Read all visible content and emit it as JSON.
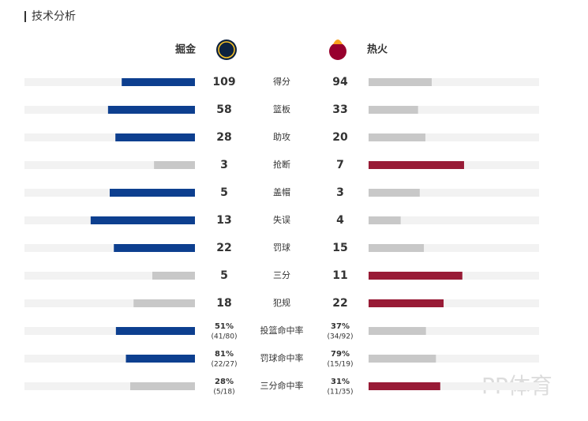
{
  "chart_data": {
    "type": "mirror-bar",
    "title": "技术分析",
    "categories": [
      "得分",
      "篮板",
      "助攻",
      "抢断",
      "盖帽",
      "失误",
      "罚球",
      "三分",
      "犯规",
      "投篮命中率",
      "罚球命中率",
      "三分命中率"
    ],
    "series": [
      {
        "name": "掘金",
        "color": "#0d3f8f",
        "values": [
          109,
          58,
          28,
          3,
          5,
          13,
          22,
          5,
          18,
          51,
          81,
          28
        ],
        "value_labels": [
          null,
          null,
          null,
          null,
          null,
          null,
          null,
          null,
          null,
          "51%",
          "81%",
          "28%"
        ],
        "details": [
          null,
          null,
          null,
          null,
          null,
          null,
          null,
          null,
          null,
          "(41/80)",
          "(22/27)",
          "(5/18)"
        ]
      },
      {
        "name": "热火",
        "color": "#981b36",
        "values": [
          94,
          33,
          20,
          7,
          3,
          4,
          15,
          11,
          22,
          37,
          79,
          31
        ],
        "value_labels": [
          null,
          null,
          null,
          null,
          null,
          null,
          null,
          null,
          null,
          "37%",
          "79%",
          "31%"
        ],
        "details": [
          null,
          null,
          null,
          null,
          null,
          null,
          null,
          null,
          null,
          "(34/92)",
          "(15/19)",
          "(11/35)"
        ]
      }
    ],
    "loser_color": "#c8c8c8",
    "track_color": "#f2f2f2",
    "watermark": "PP体育"
  }
}
